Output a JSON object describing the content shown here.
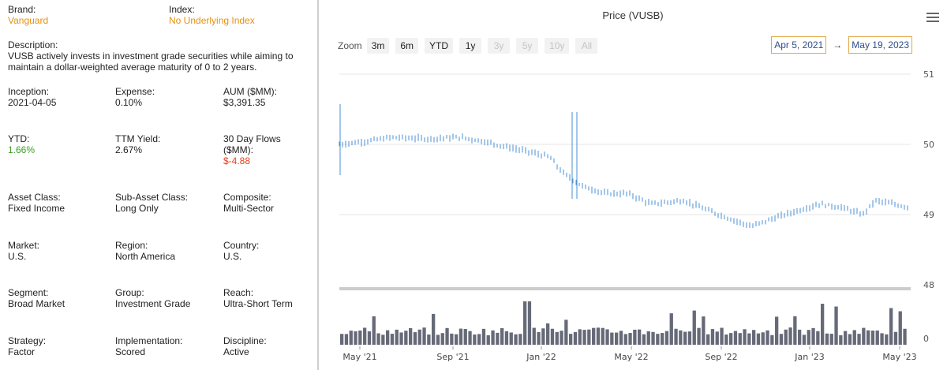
{
  "info": {
    "brand": {
      "label": "Brand:",
      "value": "Vanguard"
    },
    "index": {
      "label": "Index:",
      "value": "No Underlying Index"
    },
    "description": {
      "label": "Description:",
      "value": "VUSB actively invests in investment grade securities while aiming to maintain a dollar-weighted average maturity of 0 to 2 years."
    },
    "inception": {
      "label": "Inception:",
      "value": "2021-04-05"
    },
    "expense": {
      "label": "Expense:",
      "value": "0.10%"
    },
    "aum": {
      "label": "AUM ($MM):",
      "value": "$3,391.35"
    },
    "ytd": {
      "label": "YTD:",
      "value": "1.66%"
    },
    "ttm_yield": {
      "label": "TTM Yield:",
      "value": "2.67%"
    },
    "flows": {
      "label": "30 Day Flows ($MM):",
      "value": "$-4.88"
    },
    "asset_class": {
      "label": "Asset Class:",
      "value": "Fixed Income"
    },
    "sub_asset_class": {
      "label": "Sub-Asset Class:",
      "value": "Long Only"
    },
    "composite": {
      "label": "Composite:",
      "value": "Multi-Sector"
    },
    "market": {
      "label": "Market:",
      "value": "U.S."
    },
    "region": {
      "label": "Region:",
      "value": "North America"
    },
    "country": {
      "label": "Country:",
      "value": "U.S."
    },
    "segment": {
      "label": "Segment:",
      "value": "Broad Market"
    },
    "group": {
      "label": "Group:",
      "value": "Investment Grade"
    },
    "reach": {
      "label": "Reach:",
      "value": "Ultra-Short Term"
    },
    "strategy": {
      "label": "Strategy:",
      "value": "Factor"
    },
    "implementation": {
      "label": "Implementation:",
      "value": "Scored"
    },
    "discipline": {
      "label": "Discipline:",
      "value": "Active"
    }
  },
  "colors": {
    "accent_orange": "#e8900f",
    "positive": "#3a9d23",
    "negative": "#e8401c",
    "price_line": "#4a8fd4",
    "volume_bar": "#666a78"
  },
  "toolbar": {
    "zoom_label": "Zoom",
    "zoom_buttons": [
      {
        "label": "3m",
        "enabled": true
      },
      {
        "label": "6m",
        "enabled": true
      },
      {
        "label": "YTD",
        "enabled": true
      },
      {
        "label": "1y",
        "enabled": true
      },
      {
        "label": "3y",
        "enabled": false
      },
      {
        "label": "5y",
        "enabled": false
      },
      {
        "label": "10y",
        "enabled": false
      },
      {
        "label": "All",
        "enabled": false
      }
    ],
    "range_from": "Apr 5, 2021",
    "range_arrow": "→",
    "range_to": "May 19, 2023",
    "menu_icon": "hamburger-menu-icon"
  },
  "chart_data": {
    "type": "line",
    "title": "Price (VUSB)",
    "x_tick_labels": [
      "May '21",
      "Sep '21",
      "Jan '22",
      "May '22",
      "Sep '22",
      "Jan '23",
      "May '23"
    ],
    "y_tick_labels": [
      "51",
      "50",
      "49",
      "48"
    ],
    "volume_tick_label": "0",
    "ylim": [
      48,
      51
    ],
    "grid": true,
    "series": [
      {
        "values": [
          {
            "x": "2021-04-05",
            "y": 50.0
          },
          {
            "x": "2021-05-15",
            "y": 50.05
          },
          {
            "x": "2021-06-15",
            "y": 50.1
          },
          {
            "x": "2021-08-01",
            "y": 50.08
          },
          {
            "x": "2021-09-15",
            "y": 50.1
          },
          {
            "x": "2021-10-15",
            "y": 50.05
          },
          {
            "x": "2021-11-15",
            "y": 49.97
          },
          {
            "x": "2021-12-15",
            "y": 49.9
          },
          {
            "x": "2022-01-15",
            "y": 49.82
          },
          {
            "x": "2022-02-01",
            "y": 49.6
          },
          {
            "x": "2022-03-01",
            "y": 49.4
          },
          {
            "x": "2022-04-01",
            "y": 49.3
          },
          {
            "x": "2022-05-01",
            "y": 49.3
          },
          {
            "x": "2022-06-01",
            "y": 49.15
          },
          {
            "x": "2022-07-15",
            "y": 49.2
          },
          {
            "x": "2022-09-01",
            "y": 49.0
          },
          {
            "x": "2022-10-15",
            "y": 48.83
          },
          {
            "x": "2022-11-15",
            "y": 48.95
          },
          {
            "x": "2022-12-15",
            "y": 49.05
          },
          {
            "x": "2023-01-15",
            "y": 49.15
          },
          {
            "x": "2023-02-15",
            "y": 49.1
          },
          {
            "x": "2023-03-15",
            "y": 49.0
          },
          {
            "x": "2023-04-01",
            "y": 49.2
          },
          {
            "x": "2023-05-19",
            "y": 49.1
          }
        ]
      }
    ]
  }
}
